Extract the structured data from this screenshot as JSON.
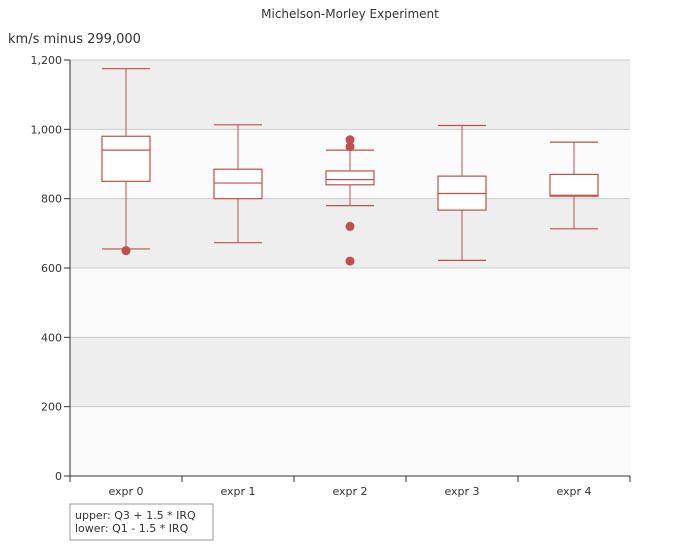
{
  "chart_data": {
    "type": "boxplot",
    "title": "Michelson-Morley Experiment",
    "ylabel": "km/s minus 299,000",
    "xlabel": "",
    "ylim": [
      0,
      1200
    ],
    "yticks": [
      0,
      200,
      400,
      600,
      800,
      1000,
      1200
    ],
    "ytick_labels": [
      "0",
      "200",
      "400",
      "600",
      "800",
      "1,000",
      "1,200"
    ],
    "grid": "horizontal bands",
    "legend_placement": "bottom-left",
    "legend_lines": [
      "upper: Q3 + 1.5 * IRQ",
      "lower: Q1 - 1.5 * IRQ"
    ],
    "colors": {
      "box": "#c0504d",
      "band_dark": "#eeeeee",
      "band_light": "#fbfbfb"
    },
    "categories": [
      "expr 0",
      "expr 1",
      "expr 2",
      "expr 3",
      "expr 4"
    ],
    "boxes": [
      {
        "low": 655,
        "q1": 850,
        "median": 940,
        "q3": 980,
        "high": 1175,
        "outliers": [
          650
        ]
      },
      {
        "low": 673,
        "q1": 800,
        "median": 845,
        "q3": 885,
        "high": 1013,
        "outliers": []
      },
      {
        "low": 780,
        "q1": 840,
        "median": 855,
        "q3": 880,
        "high": 940,
        "outliers": [
          970,
          950,
          720,
          620
        ]
      },
      {
        "low": 622,
        "q1": 767,
        "median": 815,
        "q3": 865,
        "high": 1011,
        "outliers": []
      },
      {
        "low": 713,
        "q1": 807,
        "median": 810,
        "q3": 870,
        "high": 963,
        "outliers": []
      }
    ]
  }
}
